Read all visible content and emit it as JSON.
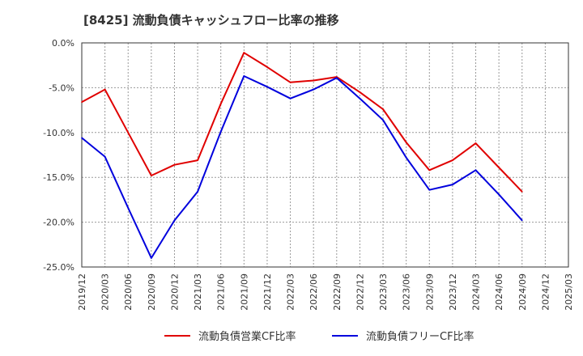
{
  "chart_data": {
    "type": "line",
    "title": "[8425]  流動負債キャッシュフロー比率の推移",
    "xlabel": "",
    "ylabel": "",
    "categories": [
      "2019/12",
      "2020/03",
      "2020/06",
      "2020/09",
      "2020/12",
      "2021/03",
      "2021/06",
      "2021/09",
      "2021/12",
      "2022/03",
      "2022/06",
      "2022/09",
      "2022/12",
      "2023/03",
      "2023/06",
      "2023/09",
      "2023/12",
      "2024/03",
      "2024/06",
      "2024/09",
      "2024/12",
      "2025/03"
    ],
    "y_ticks": [
      "0.0%",
      "-5.0%",
      "-10.0%",
      "-15.0%",
      "-20.0%",
      "-25.0%"
    ],
    "ylim": [
      -25,
      0
    ],
    "grid": true,
    "legend_position": "bottom",
    "series": [
      {
        "name": "流動負債営業CF比率",
        "color": "#e00000",
        "values": [
          -6.6,
          -5.2,
          -10.0,
          -14.8,
          -13.6,
          -13.1,
          -6.8,
          -1.1,
          -2.7,
          -4.4,
          -4.2,
          -3.8,
          -5.5,
          -7.4,
          -11.1,
          -14.2,
          -13.1,
          -11.2,
          -13.9,
          -16.6,
          null,
          null
        ]
      },
      {
        "name": "流動負債フリーCF比率",
        "color": "#0000dd",
        "values": [
          -10.6,
          -12.7,
          -18.4,
          -24.0,
          -19.8,
          -16.6,
          -9.9,
          -3.7,
          -4.9,
          -6.2,
          -5.2,
          -3.9,
          -6.2,
          -8.6,
          -12.8,
          -16.4,
          -15.8,
          -14.2,
          -16.9,
          -19.8,
          null,
          null
        ]
      }
    ]
  }
}
